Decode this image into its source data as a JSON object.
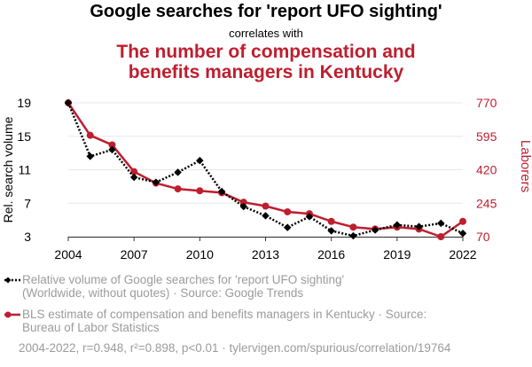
{
  "header": {
    "title": "Google searches for 'report UFO sighting'",
    "subtitle": "correlates with",
    "title2_line1": "The number of compensation and",
    "title2_line2": "benefits managers in Kentucky"
  },
  "legend": {
    "series1_line1": "Relative volume of Google searches for 'report UFO sighting'",
    "series1_line2": "(Worldwide, without quotes) · Source: Google Trends",
    "series2_line1": "BLS estimate of compensation and benefits managers in Kentucky · Source:",
    "series2_line2": "Bureau of Labor Statistics"
  },
  "footer": {
    "stats": "2004-2022, r=0.948, r²=0.898, p<0.01 · tylervigen.com/spurious/correlation/19764"
  },
  "colors": {
    "series1": "#000000",
    "series2": "#bf1e2e",
    "grid": "#e8e8e8",
    "muted": "#9b9b9b"
  },
  "chart_data": {
    "type": "line",
    "x": [
      2004,
      2005,
      2006,
      2007,
      2008,
      2009,
      2010,
      2011,
      2012,
      2013,
      2014,
      2015,
      2016,
      2017,
      2018,
      2019,
      2020,
      2021,
      2022
    ],
    "xticks": [
      2004,
      2007,
      2010,
      2013,
      2016,
      2019,
      2022
    ],
    "xlim": [
      2004,
      2022
    ],
    "y_left": {
      "label": "Rel. search volume",
      "ticks": [
        3,
        7,
        11,
        15,
        19
      ],
      "ylim": [
        3,
        19
      ]
    },
    "y_right": {
      "label": "Laborers",
      "ticks": [
        70,
        245,
        420,
        595,
        770
      ],
      "ylim": [
        70,
        770
      ]
    },
    "grid": true,
    "series": [
      {
        "name": "Relative volume of Google searches for 'report UFO sighting'",
        "axis": "left",
        "style": "dotted",
        "marker": "diamond",
        "values": [
          19,
          12.6,
          13.4,
          10.1,
          9.5,
          10.7,
          12.1,
          8.4,
          6.6,
          5.5,
          4.1,
          5.4,
          3.7,
          3.1,
          3.8,
          4.4,
          4.2,
          4.6,
          3.4
        ]
      },
      {
        "name": "BLS estimate of compensation and benefits managers in Kentucky",
        "axis": "right",
        "style": "solid",
        "marker": "circle",
        "values": [
          770,
          600,
          550,
          410,
          350,
          320,
          310,
          300,
          250,
          230,
          200,
          190,
          150,
          120,
          110,
          120,
          110,
          70,
          150
        ]
      }
    ]
  }
}
